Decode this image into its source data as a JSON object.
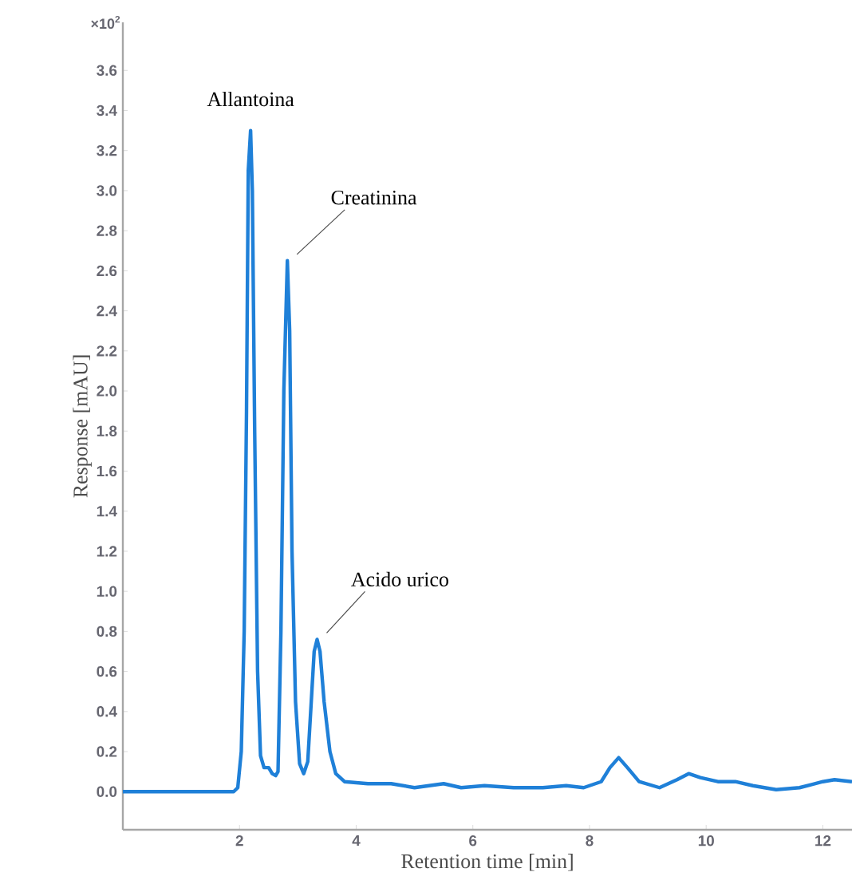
{
  "chart_data": {
    "type": "line",
    "xlabel": "Retention time [min]",
    "ylabel": "Response [mAU]",
    "annotations": [
      "×10$^{2}$",
      {
        "text": "Allantoina",
        "x": 2.19,
        "y": 3.3
      },
      {
        "text": "Creatinina",
        "x": 2.82,
        "y": 2.65
      },
      {
        "text": "Acido urico",
        "x": 3.33,
        "y": 0.76
      }
    ],
    "xlim": [
      0,
      12.5
    ],
    "ylim": [
      -0.19,
      3.84
    ],
    "xticks": [
      2,
      4,
      6,
      8,
      10,
      12
    ],
    "yticks": [
      {
        "value": 0,
        "label": "0.0"
      },
      {
        "value": 0.2,
        "label": "0.2"
      },
      {
        "value": 0.4,
        "label": "0.4"
      },
      {
        "value": 0.6,
        "label": "0.6"
      },
      {
        "value": 0.8,
        "label": "0.8"
      },
      {
        "value": 1.0,
        "label": "1.0"
      },
      {
        "value": 1.2,
        "label": "1.2"
      },
      {
        "value": 1.4,
        "label": "1.4"
      },
      {
        "value": 1.6,
        "label": "1.6"
      },
      {
        "value": 1.8,
        "label": "1.8"
      },
      {
        "value": 2.0,
        "label": "2.0"
      },
      {
        "value": 2.2,
        "label": "2.2"
      },
      {
        "value": 2.4,
        "label": "2.4"
      },
      {
        "value": 2.6,
        "label": "2.6"
      },
      {
        "value": 2.8,
        "label": "2.8"
      },
      {
        "value": 3.0,
        "label": "3.0"
      },
      {
        "value": 3.2,
        "label": "3.2"
      },
      {
        "value": 3.4,
        "label": "3.4"
      },
      {
        "value": 3.6,
        "label": "3.6"
      }
    ],
    "grid": false,
    "marker": "none",
    "line_style": "solid",
    "series": [
      {
        "color": "#1f80d8",
        "x": [
          0,
          1.9,
          1.97,
          2.03,
          2.08,
          2.12,
          2.15,
          2.19,
          2.22,
          2.26,
          2.31,
          2.36,
          2.42,
          2.5,
          2.56,
          2.62,
          2.66,
          2.71,
          2.76,
          2.82,
          2.86,
          2.9,
          2.96,
          3.03,
          3.1,
          3.17,
          3.23,
          3.28,
          3.33,
          3.38,
          3.45,
          3.55,
          3.65,
          3.8,
          4.2,
          4.6,
          5.0,
          5.5,
          5.8,
          6.2,
          6.7,
          7.2,
          7.6,
          7.9,
          8.2,
          8.35,
          8.5,
          8.65,
          8.85,
          9.2,
          9.5,
          9.7,
          9.9,
          10.2,
          10.5,
          10.8,
          11.2,
          11.6,
          12.0,
          12.2,
          12.5
        ],
        "values": [
          0,
          0,
          0.02,
          0.2,
          0.8,
          1.9,
          3.1,
          3.3,
          3.0,
          1.8,
          0.6,
          0.18,
          0.12,
          0.12,
          0.09,
          0.08,
          0.1,
          0.8,
          2.0,
          2.65,
          2.3,
          1.2,
          0.45,
          0.14,
          0.09,
          0.15,
          0.45,
          0.7,
          0.76,
          0.7,
          0.45,
          0.2,
          0.09,
          0.05,
          0.04,
          0.04,
          0.02,
          0.04,
          0.02,
          0.03,
          0.02,
          0.02,
          0.03,
          0.02,
          0.05,
          0.12,
          0.17,
          0.12,
          0.05,
          0.02,
          0.06,
          0.09,
          0.07,
          0.05,
          0.05,
          0.03,
          0.01,
          0.02,
          0.05,
          0.06,
          0.05
        ]
      }
    ]
  }
}
